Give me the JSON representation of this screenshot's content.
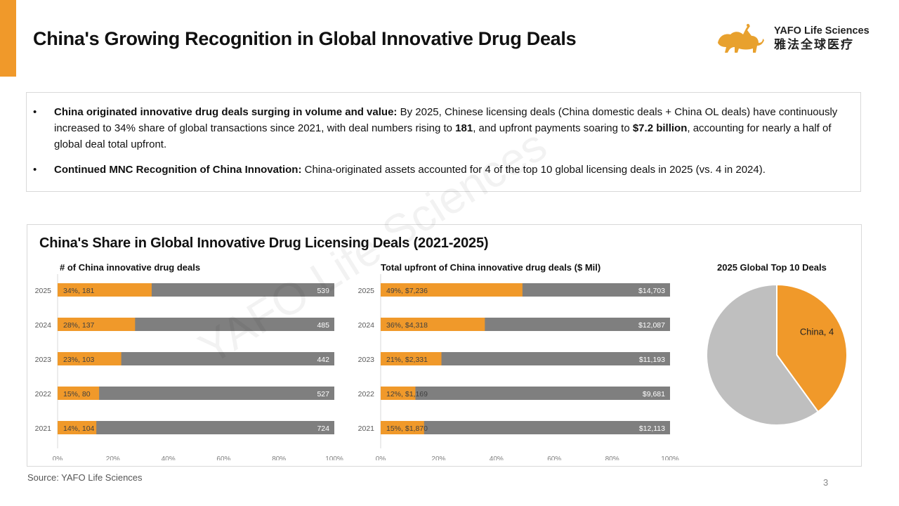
{
  "header": {
    "title": "China's Growing Recognition in Global Innovative Drug Deals",
    "logo_en": "YAFO Life Sciences",
    "logo_cn": "雅法全球医疗",
    "accent_color": "#F0992A"
  },
  "summary": {
    "bullets": [
      {
        "bold_lead": "China originated innovative drug deals surging in volume and value:",
        "text_1": " By 2025, Chinese licensing deals (China domestic deals + China OL deals) have continuously increased to 34% share of global transactions since 2021, with deal numbers rising to ",
        "bold_1": "181",
        "text_2": ", and upfront payments soaring to ",
        "bold_2": "$7.2 billion",
        "text_3": ", accounting for nearly a half of global deal total upfront."
      },
      {
        "bold_lead": "Continued MNC Recognition of China Innovation:",
        "text_1": " China-originated assets accounted for 4 of the top 10 global licensing deals in 2025 (vs. 4 in 2024)."
      }
    ]
  },
  "chart_section_title": "China's Share in Global Innovative Drug Licensing Deals (2021-2025)",
  "watermark": "YAFO Life Sciences",
  "colors": {
    "china": "#F0992A",
    "rest": "#7F7F7F",
    "pie_rest": "#BFBFBF"
  },
  "chart_data": [
    {
      "type": "bar",
      "orientation": "horizontal",
      "stacked": "100%",
      "title": "# of China innovative drug deals",
      "categories": [
        "2025",
        "2024",
        "2023",
        "2022",
        "2021"
      ],
      "series": [
        {
          "name": "China",
          "share_pct": [
            34,
            28,
            23,
            15,
            14
          ],
          "values": [
            181,
            137,
            103,
            80,
            104
          ],
          "labels": [
            "34%, 181",
            "28%, 137",
            "23%, 103",
            "15%, 80",
            "14%, 104"
          ]
        },
        {
          "name": "Rest of world",
          "values": [
            539,
            485,
            442,
            527,
            724
          ],
          "labels": [
            "539",
            "485",
            "442",
            "527",
            "724"
          ]
        }
      ],
      "xticks": [
        "0%",
        "20%",
        "40%",
        "60%",
        "80%",
        "100%"
      ],
      "xlim": [
        0,
        100
      ]
    },
    {
      "type": "bar",
      "orientation": "horizontal",
      "stacked": "100%",
      "title": "Total upfront of China innovative drug deals ($ Mil)",
      "categories": [
        "2025",
        "2024",
        "2023",
        "2022",
        "2021"
      ],
      "series": [
        {
          "name": "China",
          "share_pct": [
            49,
            36,
            21,
            12,
            15
          ],
          "values": [
            7236,
            4318,
            2331,
            1169,
            1870
          ],
          "labels": [
            "49%, $7,236",
            "36%, $4,318",
            "21%, $2,331",
            "12%, $1,169",
            "15%, $1,870"
          ]
        },
        {
          "name": "Rest of world",
          "values": [
            14703,
            12087,
            11193,
            9681,
            12113
          ],
          "labels": [
            "$14,703",
            "$12,087",
            "$11,193",
            "$9,681",
            "$12,113"
          ]
        }
      ],
      "xticks": [
        "0%",
        "20%",
        "40%",
        "60%",
        "80%",
        "100%"
      ],
      "xlim": [
        0,
        100
      ]
    },
    {
      "type": "pie",
      "title": "2025 Global Top 10 Deals",
      "slices": [
        {
          "name": "China",
          "value": 4,
          "label": "China, 4"
        },
        {
          "name": "Others",
          "value": 6,
          "label": ""
        }
      ]
    }
  ],
  "footer": {
    "source": "Source: YAFO Life Sciences",
    "page_number": "3"
  }
}
